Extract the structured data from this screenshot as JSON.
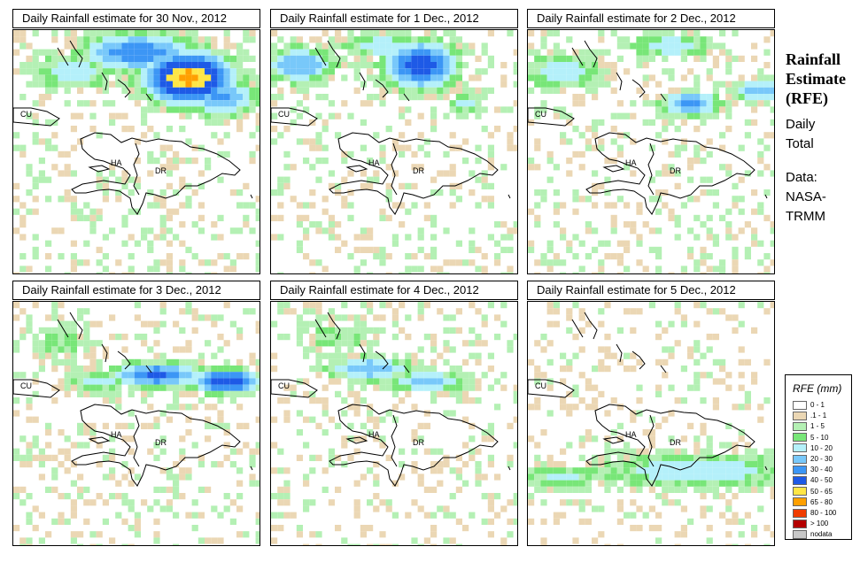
{
  "panels": [
    {
      "title": "Daily Rainfall estimate for  30 Nov., 2012",
      "seed": 11,
      "wet": 0.55,
      "blobs": [
        [
          27,
          7,
          7,
          4,
          2.6
        ],
        [
          19,
          3,
          9,
          3,
          1.6
        ],
        [
          32,
          10,
          6,
          3,
          1.4
        ],
        [
          9,
          6,
          7,
          3,
          1.0
        ]
      ]
    },
    {
      "title": "Daily Rainfall estimate for  1 Dec., 2012",
      "seed": 23,
      "wet": 0.45,
      "blobs": [
        [
          23,
          5,
          6,
          4,
          1.8
        ],
        [
          4,
          5,
          6,
          3,
          1.3
        ],
        [
          17,
          2,
          7,
          2,
          1.0
        ],
        [
          30,
          11,
          3,
          2,
          0.9
        ]
      ]
    },
    {
      "title": "Daily Rainfall estimate for  2 Dec., 2012",
      "seed": 37,
      "wet": 0.5,
      "blobs": [
        [
          25,
          11,
          5,
          2,
          1.4
        ],
        [
          36,
          9,
          5,
          2,
          1.2
        ],
        [
          5,
          6,
          7,
          3,
          1.0
        ],
        [
          22,
          2,
          7,
          2,
          1.0
        ]
      ]
    },
    {
      "title": "Daily Rainfall estimate for  3 Dec., 2012",
      "seed": 41,
      "wet": 0.5,
      "blobs": [
        [
          22,
          11,
          7,
          2,
          1.7
        ],
        [
          33,
          12,
          6,
          2,
          1.9
        ],
        [
          13,
          12,
          5,
          2,
          0.9
        ],
        [
          7,
          6,
          5,
          3,
          0.6
        ]
      ]
    },
    {
      "title": "Daily Rainfall estimate for  4 Dec., 2012",
      "seed": 53,
      "wet": 0.45,
      "blobs": [
        [
          15,
          10,
          7,
          2,
          1.3
        ],
        [
          24,
          12,
          6,
          2,
          1.2
        ],
        [
          10,
          5,
          6,
          3,
          0.7
        ]
      ]
    },
    {
      "title": "Daily Rainfall estimate for  5 Dec., 2012",
      "seed": 67,
      "wet": 0.22,
      "blobs": [
        [
          26,
          26,
          18,
          3,
          1.0
        ],
        [
          5,
          27,
          8,
          2,
          0.8
        ]
      ]
    }
  ],
  "map_labels": {
    "cuba": "CU",
    "haiti": "HA",
    "dominican_republic": "DR"
  },
  "side": {
    "title_line1": "Rainfall",
    "title_line2": "Estimate",
    "title_line3": "(RFE)",
    "daily": "Daily",
    "total": "Total",
    "data_label": "Data:",
    "source1": "NASA-",
    "source2": "TRMM"
  },
  "legend": {
    "title": "RFE (mm)",
    "items": [
      {
        "label": "0 - 1",
        "color": "#ffffff"
      },
      {
        "label": ".1 - 1",
        "color": "#ebd7b4"
      },
      {
        "label": "1 - 5",
        "color": "#b4f0b4"
      },
      {
        "label": "5 - 10",
        "color": "#78e678"
      },
      {
        "label": "10 - 20",
        "color": "#b4f0fa"
      },
      {
        "label": "20 - 30",
        "color": "#78c8fa"
      },
      {
        "label": "30 - 40",
        "color": "#3c96f5"
      },
      {
        "label": "40 - 50",
        "color": "#1e5ae6"
      },
      {
        "label": "50 - 65",
        "color": "#ffe646"
      },
      {
        "label": "65 - 80",
        "color": "#ffa000"
      },
      {
        "label": "80 - 100",
        "color": "#f03c00"
      },
      {
        "label": "> 100",
        "color": "#b40000"
      },
      {
        "label": "nodata",
        "color": "#c8c8c8"
      }
    ]
  }
}
